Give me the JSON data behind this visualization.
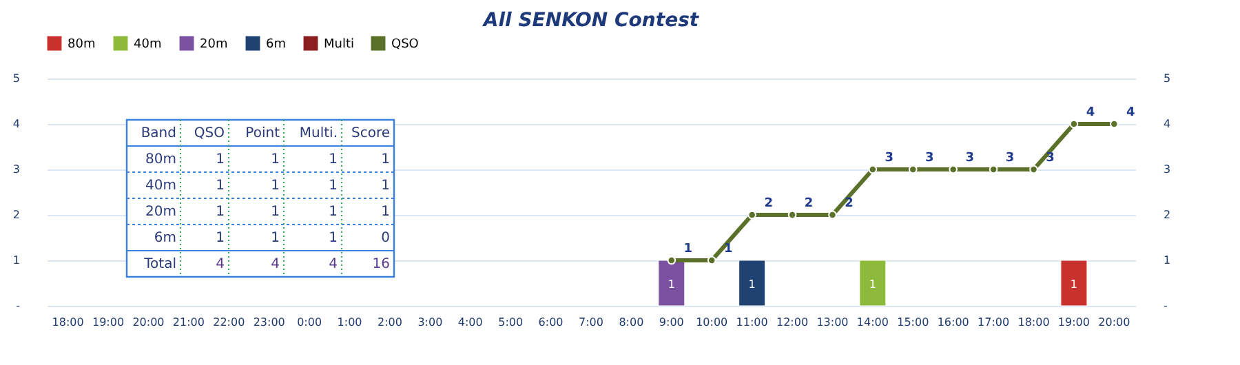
{
  "chart_data": {
    "type": "bar",
    "title": "All SENKON Contest",
    "categories": [
      "18:00",
      "19:00",
      "20:00",
      "21:00",
      "22:00",
      "23:00",
      "0:00",
      "1:00",
      "2:00",
      "3:00",
      "4:00",
      "5:00",
      "6:00",
      "7:00",
      "8:00",
      "9:00",
      "10:00",
      "11:00",
      "12:00",
      "13:00",
      "14:00",
      "15:00",
      "16:00",
      "17:00",
      "18:00",
      "19:00",
      "20:00"
    ],
    "series": [
      {
        "name": "80m",
        "color": "#c8312e",
        "values": [
          null,
          null,
          null,
          null,
          null,
          null,
          null,
          null,
          null,
          null,
          null,
          null,
          null,
          null,
          null,
          null,
          null,
          null,
          null,
          null,
          null,
          null,
          null,
          null,
          null,
          1,
          null
        ]
      },
      {
        "name": "40m",
        "color": "#8dba3a",
        "values": [
          null,
          null,
          null,
          null,
          null,
          null,
          null,
          null,
          null,
          null,
          null,
          null,
          null,
          null,
          null,
          null,
          null,
          null,
          null,
          null,
          1,
          null,
          null,
          null,
          null,
          null,
          null
        ]
      },
      {
        "name": "20m",
        "color": "#7a519f",
        "values": [
          null,
          null,
          null,
          null,
          null,
          null,
          null,
          null,
          null,
          null,
          null,
          null,
          null,
          null,
          null,
          1,
          null,
          null,
          null,
          null,
          null,
          null,
          null,
          null,
          null,
          null,
          null
        ]
      },
      {
        "name": "6m",
        "color": "#1f4272",
        "values": [
          null,
          null,
          null,
          null,
          null,
          null,
          null,
          null,
          null,
          null,
          null,
          null,
          null,
          null,
          null,
          null,
          null,
          1,
          null,
          null,
          null,
          null,
          null,
          null,
          null,
          null,
          null
        ]
      },
      {
        "name": "Multi",
        "color": "#8b1e1e",
        "type": "line",
        "values": [
          null,
          null,
          null,
          null,
          null,
          null,
          null,
          null,
          null,
          null,
          null,
          null,
          null,
          null,
          null,
          null,
          null,
          null,
          null,
          null,
          null,
          null,
          null,
          null,
          null,
          null,
          null
        ]
      },
      {
        "name": "QSO",
        "color": "#5b7028",
        "type": "line",
        "values": [
          null,
          null,
          null,
          null,
          null,
          null,
          null,
          null,
          null,
          null,
          null,
          null,
          null,
          null,
          null,
          1,
          1,
          2,
          2,
          2,
          3,
          3,
          3,
          3,
          3,
          4,
          4
        ]
      }
    ],
    "ylim": [
      0,
      5
    ],
    "yticks": [
      {
        "value": 0,
        "label": "-"
      },
      1,
      2,
      3,
      4,
      5
    ],
    "y2lim": [
      0,
      5
    ],
    "y2ticks": [
      {
        "value": 0,
        "label": "-"
      },
      1,
      2,
      3,
      4,
      5
    ],
    "grid": "y",
    "legend": "top",
    "marker": "circle",
    "data_labels": true,
    "annotations": [
      "Band",
      "QSO",
      "Point",
      "Multi.",
      "Score",
      "80m",
      "1",
      "1",
      "1",
      "1",
      "40m",
      "1",
      "1",
      "1",
      "1",
      "20m",
      "1",
      "1",
      "1",
      "1",
      "6m",
      "1",
      "1",
      "1",
      "0",
      "Total",
      "4",
      "4",
      "4",
      "16"
    ]
  }
}
